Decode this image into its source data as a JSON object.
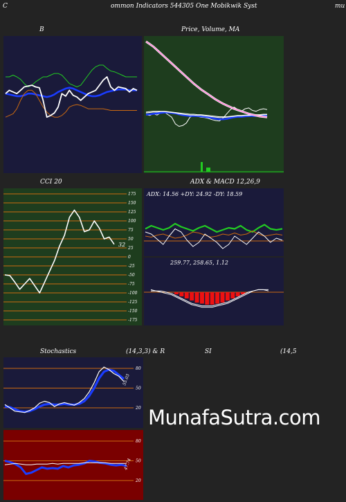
{
  "header": {
    "left_c": "C",
    "title": "ommon  Indicators 544305 One  Mobikwik Syst",
    "right": "mu"
  },
  "watermark": "MunafaSutra.com",
  "colors": {
    "navy": "#1a1a3a",
    "green_bg": "#1e3d1e",
    "red_bg": "#7a0000",
    "blue": "#1a3cff",
    "green": "#22cc22",
    "orange": "#cc6a10",
    "white": "#ffffff",
    "pink": "#ff66cc"
  },
  "chart_data": [
    {
      "id": "bollinger",
      "type": "line",
      "title": "B",
      "series": [
        {
          "role": "upper",
          "color": "#22cc22",
          "values": [
            108,
            108,
            110,
            108,
            105,
            100,
            96,
            98,
            102,
            105,
            108,
            108,
            110,
            112,
            112,
            110,
            105,
            100,
            98,
            96,
            98,
            104,
            110,
            116,
            120,
            122,
            122,
            118,
            115,
            114,
            112,
            110,
            108,
            108,
            108,
            108
          ]
        },
        {
          "role": "middle",
          "color": "#1a3cff",
          "values": [
            88,
            87,
            86,
            85,
            85,
            86,
            88,
            88,
            87,
            86,
            85,
            84,
            85,
            87,
            90,
            92,
            94,
            95,
            94,
            92,
            90,
            88,
            86,
            85,
            85,
            86,
            88,
            90,
            91,
            92,
            93,
            93,
            93,
            92,
            92,
            92
          ]
        },
        {
          "role": "lower",
          "color": "#cc6a10",
          "values": [
            60,
            62,
            64,
            70,
            80,
            88,
            92,
            92,
            88,
            80,
            72,
            66,
            62,
            60,
            60,
            62,
            66,
            72,
            74,
            75,
            74,
            72,
            70,
            70,
            70,
            70,
            70,
            69,
            68,
            68,
            68,
            68,
            68,
            68,
            68,
            68
          ]
        },
        {
          "role": "price",
          "color": "#ffffff",
          "values": [
            88,
            92,
            90,
            88,
            92,
            96,
            97,
            98,
            96,
            95,
            80,
            60,
            62,
            65,
            72,
            88,
            85,
            92,
            86,
            84,
            80,
            84,
            88,
            90,
            92,
            98,
            104,
            108,
            96,
            92,
            96,
            95,
            94,
            90,
            94,
            92
          ]
        }
      ]
    },
    {
      "id": "price-ma",
      "type": "line",
      "title": "Price,  Volume,  MA",
      "series": [
        {
          "role": "price",
          "color": "#ffffff",
          "values": [
            126,
            124,
            128,
            125,
            130,
            132,
            126,
            120,
            104,
            98,
            100,
            106,
            120,
            124,
            122,
            120,
            119,
            117,
            114,
            112,
            111,
            118,
            128,
            138,
            144,
            138,
            134,
            140,
            142,
            136,
            134,
            138,
            140,
            138
          ]
        },
        {
          "role": "ma-blue",
          "color": "#1a3cff",
          "values": [
            126,
            127,
            128,
            129,
            130,
            131,
            131,
            130,
            129,
            127,
            125,
            124,
            123,
            123,
            123,
            122,
            121,
            120,
            118,
            116,
            115,
            115,
            116,
            118,
            120,
            121,
            121,
            122,
            123,
            123,
            123,
            124,
            124,
            124
          ]
        },
        {
          "role": "ma-white-1",
          "color": "#ffffff",
          "values": [
            130,
            131,
            132,
            132,
            133,
            133,
            132,
            131,
            130,
            128,
            127,
            126,
            125,
            125,
            124,
            124,
            123,
            122,
            121,
            120,
            119,
            119,
            120,
            121,
            122,
            123,
            123,
            124,
            124,
            125,
            125,
            125,
            126,
            126
          ]
        },
        {
          "role": "ma-white-2",
          "color": "#ffffff",
          "values": [
            132,
            133,
            134,
            134,
            134,
            134,
            133,
            132,
            131,
            130,
            129,
            128,
            127,
            127,
            126,
            126,
            125,
            124,
            123,
            122,
            121,
            121,
            121,
            122,
            123,
            124,
            124,
            125,
            125,
            126,
            126,
            126,
            127,
            127
          ]
        },
        {
          "role": "ma-pink",
          "color": "#ff66cc",
          "values": [
            300,
            294,
            288,
            280,
            272,
            264,
            256,
            248,
            240,
            232,
            224,
            216,
            208,
            200,
            193,
            186,
            180,
            174,
            168,
            162,
            157,
            152,
            148,
            144,
            140,
            137,
            134,
            131,
            128,
            126,
            124,
            122,
            121,
            120
          ]
        }
      ],
      "volume": [
        0,
        0,
        0,
        0,
        0,
        0,
        0,
        0,
        0,
        0,
        0,
        0,
        0,
        0,
        0,
        0,
        0,
        0,
        0,
        0,
        0,
        0,
        0,
        0,
        0,
        0,
        0,
        0,
        0,
        0,
        0,
        0,
        0,
        0
      ]
    },
    {
      "id": "cci",
      "type": "line",
      "title": "CCI 20",
      "value_label": "32",
      "ticks": [
        "175",
        "150",
        "125",
        "100",
        "75",
        "50",
        "25",
        "0",
        "-25",
        "-50",
        "-75",
        "-100",
        "-125",
        "-150",
        "-175"
      ],
      "values": [
        -50,
        -52,
        -70,
        -90,
        -75,
        -60,
        -80,
        -100,
        -70,
        -40,
        -10,
        30,
        60,
        110,
        130,
        110,
        70,
        75,
        100,
        80,
        50,
        55,
        35
      ]
    },
    {
      "id": "adx-macd",
      "type": "line",
      "title": "ADX  & MACD 12,26,9",
      "adx_text": "ADX: 14.56  +DY: 24.92  -DY: 18.59",
      "macd_text": "259.77,  258.65,  1.12",
      "adx_series": [
        {
          "role": "plus-di",
          "color": "#22cc22",
          "values": [
            25,
            28,
            26,
            24,
            26,
            30,
            27,
            25,
            23,
            26,
            28,
            25,
            22,
            24,
            26,
            25,
            28,
            24,
            22,
            26,
            29,
            25,
            24,
            25
          ]
        },
        {
          "role": "minus-di",
          "color": "#cc6a10",
          "values": [
            18,
            17,
            19,
            20,
            18,
            16,
            17,
            19,
            22,
            21,
            19,
            17,
            18,
            20,
            19,
            21,
            19,
            20,
            23,
            20,
            18,
            19,
            20,
            19
          ]
        },
        {
          "role": "adx",
          "color": "#ffffff",
          "values": [
            22,
            20,
            15,
            10,
            18,
            25,
            22,
            14,
            8,
            12,
            20,
            16,
            12,
            6,
            10,
            18,
            14,
            10,
            16,
            22,
            18,
            12,
            16,
            14
          ]
        }
      ],
      "macd_hist": [
        0,
        0,
        0,
        0,
        0,
        -1,
        -2,
        -3,
        -4,
        -5,
        -5.5,
        -6,
        -6,
        -5.5,
        -5,
        -4,
        -3,
        -2,
        -1,
        0,
        0,
        0,
        0,
        0
      ],
      "macd_lines": [
        {
          "role": "macd",
          "color": "#ffffff",
          "values": [
            2,
            1,
            0,
            -1,
            -2,
            -4,
            -6,
            -8,
            -10,
            -11,
            -12,
            -12,
            -12,
            -11,
            -10,
            -9,
            -7,
            -5,
            -3,
            -1,
            1,
            2,
            2,
            1
          ]
        },
        {
          "role": "signal",
          "color": "#ffffff",
          "values": [
            1,
            1,
            1,
            0,
            -1,
            -3,
            -5,
            -7,
            -9,
            -10,
            -11,
            -11,
            -11,
            -10,
            -9,
            -8,
            -6,
            -4,
            -2,
            0,
            1,
            2,
            2,
            2
          ]
        }
      ]
    },
    {
      "id": "stochastics",
      "type": "line",
      "title": "Stochastics",
      "params": "(14,3,3) & R",
      "ticks": [
        "80",
        "50",
        "20"
      ],
      "value_label": "55.03",
      "series": [
        {
          "role": "k",
          "color": "#ffffff",
          "values": [
            25,
            20,
            15,
            14,
            13,
            16,
            20,
            27,
            30,
            28,
            22,
            26,
            28,
            26,
            24,
            28,
            34,
            44,
            58,
            75,
            82,
            78,
            72,
            68,
            60
          ]
        },
        {
          "role": "d",
          "color": "#1a3cff",
          "values": [
            22,
            21,
            18,
            15,
            14,
            15,
            18,
            22,
            25,
            26,
            25,
            25,
            26,
            25,
            25,
            26,
            30,
            38,
            50,
            65,
            75,
            78,
            76,
            70,
            64
          ]
        }
      ]
    },
    {
      "id": "rsi",
      "type": "line",
      "title": "SI",
      "params": "(14,5",
      "ticks": [
        "80",
        "50",
        "20"
      ],
      "value_label": "47.74",
      "series": [
        {
          "role": "rsi",
          "color": "#1a3cff",
          "values": [
            50,
            48,
            45,
            40,
            30,
            32,
            36,
            40,
            38,
            39,
            38,
            42,
            40,
            43,
            44,
            46,
            50,
            49,
            47,
            46,
            44,
            43,
            44,
            42
          ]
        },
        {
          "role": "rsi-thin",
          "color": "#ffffff",
          "values": [
            44,
            45,
            46,
            45,
            44,
            44,
            45,
            45,
            45,
            46,
            45,
            46,
            46,
            46,
            46,
            47,
            47,
            47,
            47,
            47,
            46,
            46,
            46,
            46
          ]
        }
      ]
    }
  ]
}
